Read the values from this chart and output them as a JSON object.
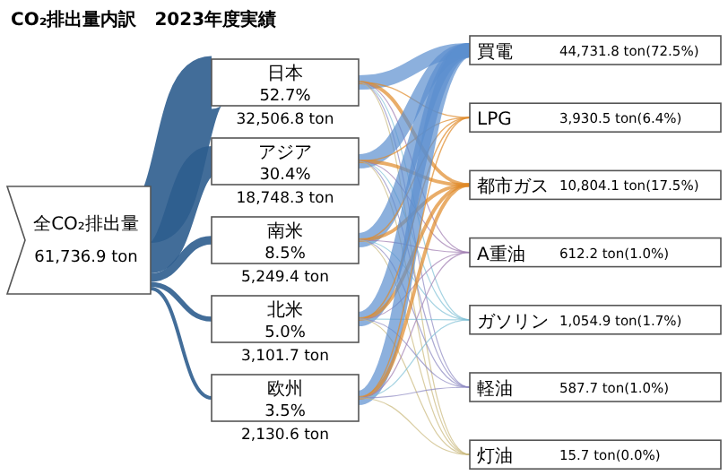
{
  "chart_data": {
    "type": "other",
    "title": "CO₂排出量内訳　2023年度実績",
    "categories": [
      "全CO₂排出量",
      "日本",
      "アジア",
      "南米",
      "北米",
      "欧州",
      "買電",
      "LPG",
      "都市ガス",
      "A重油",
      "ガソリン",
      "軽油",
      "灯油"
    ],
    "values": [
      61736.9,
      52.7,
      30.4,
      8.5,
      5.0,
      3.5,
      44731.8,
      3930.5,
      10804.1,
      612.2,
      1054.9,
      587.7,
      15.7
    ],
    "value_labels": [
      "61,736.9 ton",
      "52.7%",
      "30.4%",
      "8.5%",
      "5.0%",
      "3.5%",
      "44,731.8 ton(72.5%)",
      "3,930.5 ton(6.4%)",
      "10,804.1 ton(17.5%)",
      "612.2 ton(1.0%)",
      "1,054.9 ton(1.7%)",
      "587.7 ton(1.0%)",
      "15.7 ton(0.0%)"
    ],
    "annotations": [
      "32,506.8 ton",
      "18,748.3 ton",
      "5,249.4 ton",
      "3,101.7 ton",
      "2,130.6 ton"
    ]
  }
}
